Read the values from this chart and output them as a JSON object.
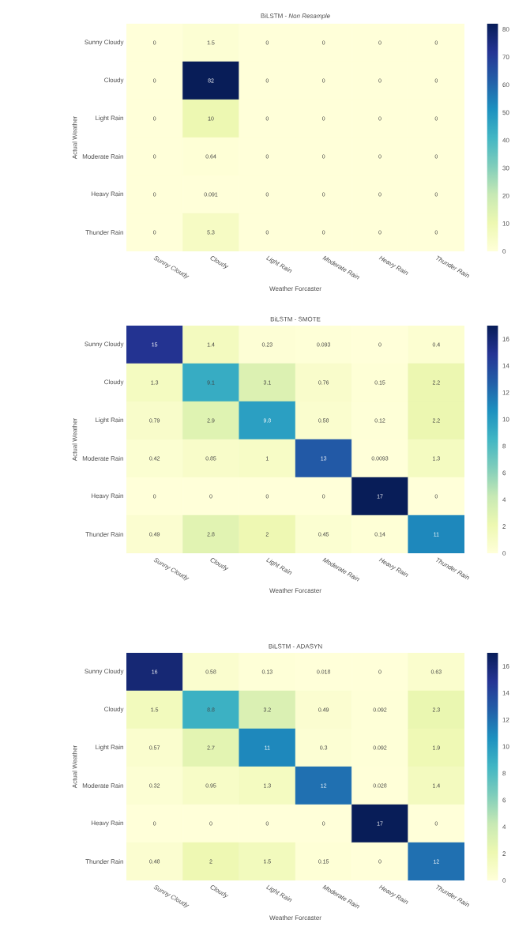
{
  "chart_data": [
    {
      "type": "heatmap",
      "title": "BiLSTM - *Non Resample*",
      "xlabel": "Weather Forcaster",
      "ylabel": "Actual Weather",
      "categories": [
        "Sunny Cloudy",
        "Cloudy",
        "Light Rain",
        "Moderate Rain",
        "Heavy Rain",
        "Thunder Rain"
      ],
      "y_categories": [
        "Sunny Cloudy",
        "Cloudy",
        "Light Rain",
        "Moderate Rain",
        "Heavy Rain",
        "Thunder Rain"
      ],
      "cells": [
        [
          0,
          1.5,
          0,
          0,
          0,
          0
        ],
        [
          0,
          82,
          0,
          0,
          0,
          0
        ],
        [
          0,
          10,
          0,
          0,
          0,
          0
        ],
        [
          0,
          0.64,
          0,
          0,
          0,
          0
        ],
        [
          0,
          0.091,
          0,
          0,
          0,
          0
        ],
        [
          0,
          5.3,
          0,
          0,
          0,
          0
        ]
      ],
      "clim": [
        0,
        82
      ],
      "cticks": [
        0,
        10,
        20,
        30,
        40,
        50,
        60,
        70,
        80
      ],
      "data_labels": true
    },
    {
      "type": "heatmap",
      "title": "BiLSTM - SMOTE",
      "xlabel": "Weather Forcaster",
      "ylabel": "Actual Weather",
      "categories": [
        "Sunny Cloudy",
        "Cloudy",
        "Light Rain",
        "Moderate Rain",
        "Heavy Rain",
        "Thunder Rain"
      ],
      "y_categories": [
        "Sunny Cloudy",
        "Cloudy",
        "Light Rain",
        "Moderate Rain",
        "Heavy Rain",
        "Thunder Rain"
      ],
      "cells": [
        [
          15,
          1.4,
          0.23,
          0.093,
          0,
          0.4
        ],
        [
          1.3,
          9.1,
          3.1,
          0.76,
          0.15,
          2.2
        ],
        [
          0.79,
          2.9,
          9.8,
          0.58,
          0.12,
          2.2
        ],
        [
          0.42,
          0.85,
          1,
          13,
          0.0093,
          1.3
        ],
        [
          0,
          0,
          0,
          0,
          17,
          0
        ],
        [
          0.49,
          2.8,
          2,
          0.45,
          0.14,
          11
        ]
      ],
      "clim": [
        0,
        17
      ],
      "cticks": [
        0,
        2,
        4,
        6,
        8,
        10,
        12,
        14,
        16
      ],
      "data_labels": true
    },
    {
      "type": "heatmap",
      "title": "BiLSTM - ADASYN",
      "xlabel": "Weather Forcaster",
      "ylabel": "Actual Weather",
      "categories": [
        "Sunny Cloudy",
        "Cloudy",
        "Light Rain",
        "Moderate Rain",
        "Heavy Rain",
        "Thunder Rain"
      ],
      "y_categories": [
        "Sunny Cloudy",
        "Cloudy",
        "Light Rain",
        "Moderate Rain",
        "Heavy Rain",
        "Thunder Rain"
      ],
      "cells": [
        [
          16,
          0.58,
          0.13,
          0.018,
          0,
          0.63
        ],
        [
          1.5,
          8.8,
          3.2,
          0.49,
          0.092,
          2.3
        ],
        [
          0.57,
          2.7,
          11,
          0.3,
          0.092,
          1.9
        ],
        [
          0.32,
          0.95,
          1.3,
          12,
          0.028,
          1.4
        ],
        [
          0,
          0,
          0,
          0,
          17,
          0
        ],
        [
          0.48,
          2,
          1.5,
          0.15,
          0,
          12
        ]
      ],
      "clim": [
        0,
        17
      ],
      "cticks": [
        0,
        2,
        4,
        6,
        8,
        10,
        12,
        14,
        16
      ],
      "data_labels": true
    }
  ]
}
